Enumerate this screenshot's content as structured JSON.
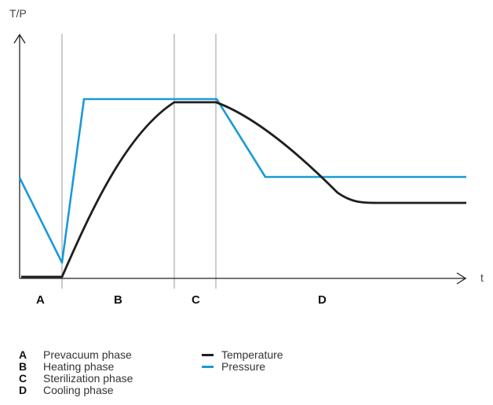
{
  "diagram": {
    "type": "line",
    "y_axis_label": "T/P",
    "x_axis_label": "t",
    "phases": [
      {
        "key": "A",
        "label": "Prevacuum phase"
      },
      {
        "key": "B",
        "label": "Heating phase"
      },
      {
        "key": "C",
        "label": "Sterilization phase"
      },
      {
        "key": "D",
        "label": "Cooling phase"
      }
    ],
    "series": [
      {
        "name": "Temperature",
        "color": "#1f1f1f"
      },
      {
        "name": "Pressure",
        "color": "#1b9ad6"
      }
    ],
    "colors": {
      "axis": "#222222",
      "phase_divider": "#9a9a9a"
    }
  }
}
